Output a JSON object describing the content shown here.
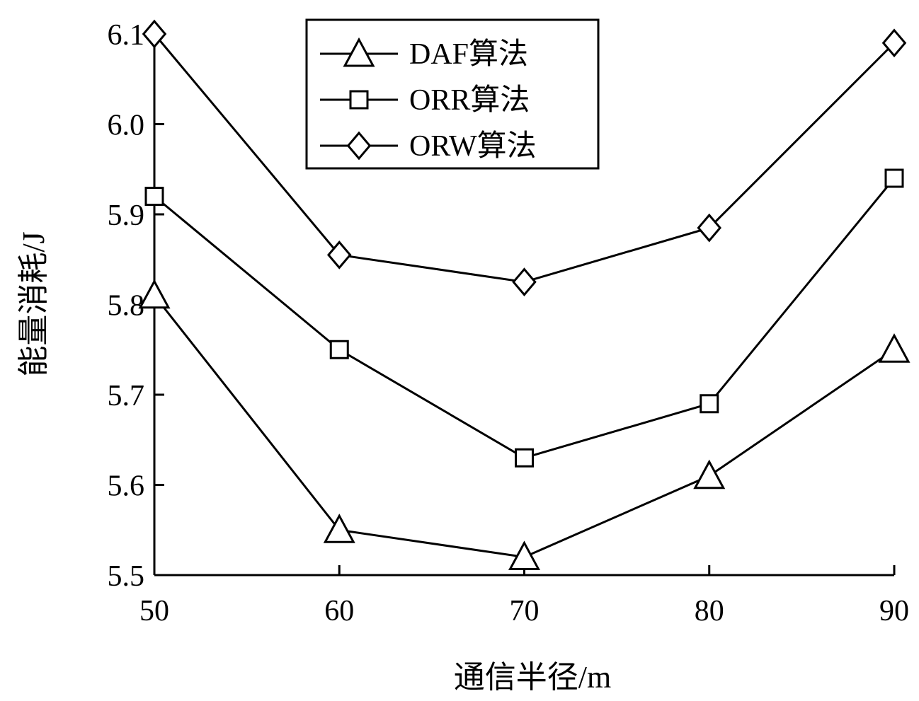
{
  "chart_data": {
    "type": "line",
    "xlabel": "通信半径/m",
    "ylabel": "能量消耗/J",
    "x": [
      50,
      60,
      70,
      80,
      90
    ],
    "xlim": [
      50,
      90
    ],
    "ylim": [
      5.5,
      6.1
    ],
    "xticks": [
      "50",
      "60",
      "70",
      "80",
      "90"
    ],
    "yticks": [
      "5.5",
      "5.6",
      "5.7",
      "5.8",
      "5.9",
      "6.0",
      "6.1"
    ],
    "grid": false,
    "legend_position": "top-center",
    "series": [
      {
        "name": "DAF算法",
        "marker": "triangle",
        "values": [
          5.81,
          5.55,
          5.52,
          5.61,
          5.75
        ]
      },
      {
        "name": "ORR算法",
        "marker": "square",
        "values": [
          5.92,
          5.75,
          5.63,
          5.69,
          5.94
        ]
      },
      {
        "name": "ORW算法",
        "marker": "diamond",
        "values": [
          6.1,
          5.855,
          5.825,
          5.885,
          6.09
        ]
      }
    ],
    "line_color": "#000000"
  }
}
